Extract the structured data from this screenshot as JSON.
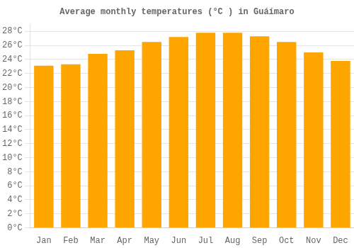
{
  "chart_data": {
    "type": "bar",
    "title": "Average monthly temperatures (°C ) in Guáímaro",
    "categories": [
      "Jan",
      "Feb",
      "Mar",
      "Apr",
      "May",
      "Jun",
      "Jul",
      "Aug",
      "Sep",
      "Oct",
      "Nov",
      "Dec"
    ],
    "values": [
      23.1,
      23.3,
      24.8,
      25.3,
      26.5,
      27.2,
      27.8,
      27.8,
      27.3,
      26.5,
      25.0,
      23.8
    ],
    "color": "#FFA500",
    "ylim": [
      0,
      29
    ],
    "yticks": [
      {
        "value": 0,
        "label": "0°C"
      },
      {
        "value": 2,
        "label": "2°C"
      },
      {
        "value": 4,
        "label": "4°C"
      },
      {
        "value": 6,
        "label": "6°C"
      },
      {
        "value": 8,
        "label": "8°C"
      },
      {
        "value": 10,
        "label": "10°C"
      },
      {
        "value": 12,
        "label": "12°C"
      },
      {
        "value": 14,
        "label": "14°C"
      },
      {
        "value": 16,
        "label": "16°C"
      },
      {
        "value": 18,
        "label": "18°C"
      },
      {
        "value": 20,
        "label": "20°C"
      },
      {
        "value": 22,
        "label": "22°C"
      },
      {
        "value": 24,
        "label": "24°C"
      },
      {
        "value": 26,
        "label": "26°C"
      },
      {
        "value": 28,
        "label": "28°C"
      }
    ],
    "grid": true
  }
}
